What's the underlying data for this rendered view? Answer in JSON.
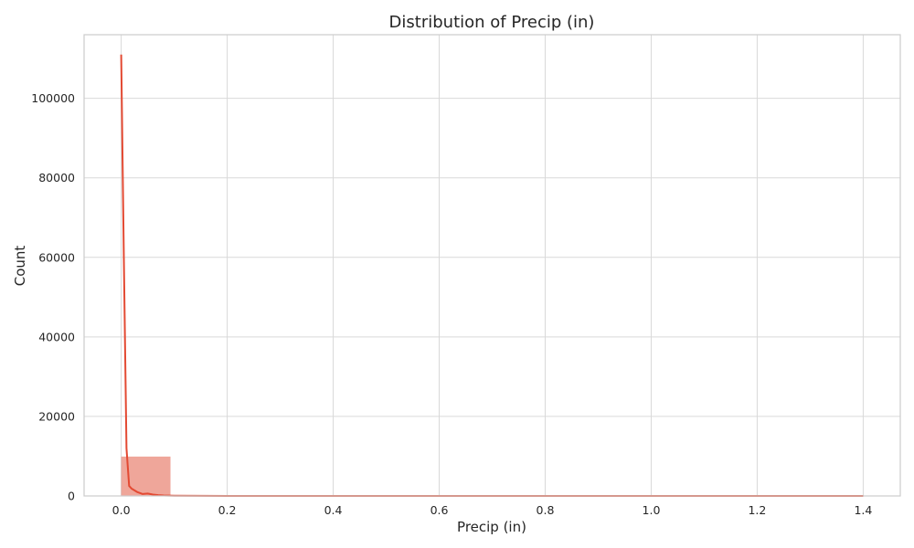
{
  "chart_data": {
    "type": "histogram",
    "title": "Distribution of Precip (in)",
    "xlabel": "Precip (in)",
    "ylabel": "Count",
    "xlim": [
      -0.07,
      1.47
    ],
    "ylim": [
      0,
      116000
    ],
    "x_ticks": [
      0.0,
      0.2,
      0.4,
      0.6,
      0.8,
      1.0,
      1.2,
      1.4
    ],
    "x_tick_labels": [
      "0.0",
      "0.2",
      "0.4",
      "0.6",
      "0.8",
      "1.0",
      "1.2",
      "1.4"
    ],
    "y_ticks": [
      0,
      20000,
      40000,
      60000,
      80000,
      100000
    ],
    "y_tick_labels": [
      "0",
      "20000",
      "40000",
      "60000",
      "80000",
      "100000"
    ],
    "grid": true,
    "colors": {
      "bar_fill": "#e8806f",
      "bar_opacity": 0.7,
      "kde_line": "#e34a33"
    },
    "bins": [
      {
        "x0": 0.0,
        "x1": 0.093,
        "count": 9900
      },
      {
        "x0": 0.093,
        "x1": 0.187,
        "count": 120
      },
      {
        "x0": 0.187,
        "x1": 0.28,
        "count": 40
      },
      {
        "x0": 0.28,
        "x1": 0.373,
        "count": 15
      },
      {
        "x0": 0.373,
        "x1": 0.467,
        "count": 8
      },
      {
        "x0": 0.467,
        "x1": 0.56,
        "count": 4
      },
      {
        "x0": 0.56,
        "x1": 0.653,
        "count": 2
      },
      {
        "x0": 0.653,
        "x1": 0.747,
        "count": 1
      },
      {
        "x0": 0.747,
        "x1": 0.84,
        "count": 1
      },
      {
        "x0": 0.84,
        "x1": 0.933,
        "count": 0
      },
      {
        "x0": 0.933,
        "x1": 1.027,
        "count": 0
      },
      {
        "x0": 1.027,
        "x1": 1.12,
        "count": 0
      },
      {
        "x0": 1.12,
        "x1": 1.213,
        "count": 0
      },
      {
        "x0": 1.213,
        "x1": 1.307,
        "count": 0
      },
      {
        "x0": 1.307,
        "x1": 1.4,
        "count": 1
      }
    ],
    "kde": {
      "x": [
        0.0,
        0.005,
        0.01,
        0.015,
        0.02,
        0.03,
        0.04,
        0.05,
        0.06,
        0.07,
        0.08,
        0.1,
        0.15,
        0.2,
        0.3,
        0.4,
        0.6,
        0.8,
        1.0,
        1.2,
        1.4
      ],
      "y": [
        111000,
        60000,
        12000,
        2500,
        1800,
        1000,
        500,
        600,
        350,
        200,
        120,
        60,
        20,
        10,
        5,
        2,
        1,
        1,
        1,
        1,
        1
      ]
    }
  }
}
